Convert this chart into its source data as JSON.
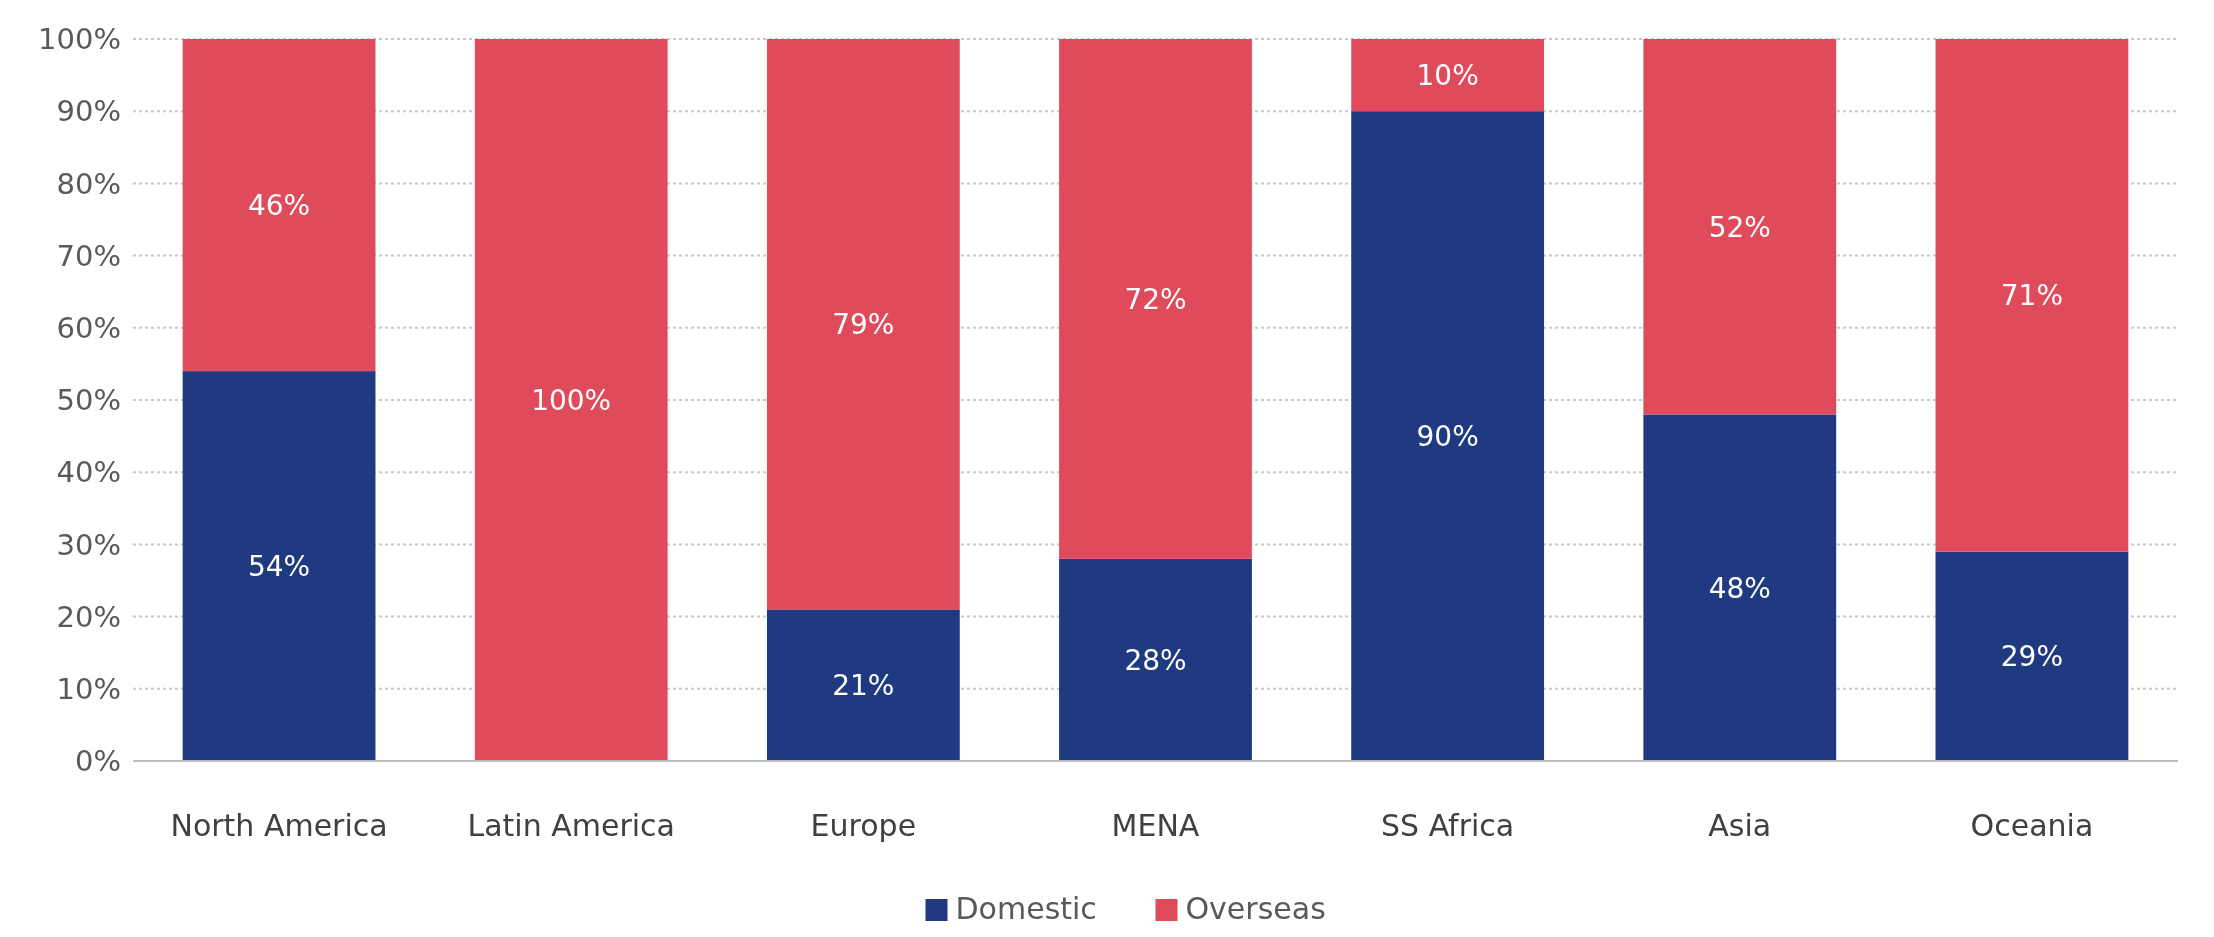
{
  "chart_data": {
    "type": "bar",
    "stacked": true,
    "categories": [
      "North America",
      "Latin America",
      "Europe",
      "MENA",
      "SS Africa",
      "Asia",
      "Oceania"
    ],
    "series": [
      {
        "name": "Domestic",
        "color": "#1f3a80",
        "values": [
          54,
          0,
          21,
          28,
          90,
          48,
          29
        ],
        "value_labels": [
          "54%",
          null,
          "21%",
          "28%",
          "90%",
          "48%",
          "29%"
        ]
      },
      {
        "name": "Overseas",
        "color": "#e04b5c",
        "values": [
          46,
          100,
          79,
          72,
          10,
          52,
          71
        ],
        "value_labels": [
          "46%",
          "100%",
          "79%",
          "72%",
          "10%",
          "52%",
          "71%"
        ]
      }
    ],
    "ylim": [
      0,
      100
    ],
    "yticks": [
      {
        "value": 0,
        "label": "0%"
      },
      {
        "value": 10,
        "label": "10%"
      },
      {
        "value": 20,
        "label": "20%"
      },
      {
        "value": 30,
        "label": "30%"
      },
      {
        "value": 40,
        "label": "40%"
      },
      {
        "value": 50,
        "label": "50%"
      },
      {
        "value": 60,
        "label": "60%"
      },
      {
        "value": 70,
        "label": "70%"
      },
      {
        "value": 80,
        "label": "80%"
      },
      {
        "value": 90,
        "label": "90%"
      },
      {
        "value": 100,
        "label": "100%"
      }
    ],
    "grid": "y",
    "legend": "bottom"
  }
}
